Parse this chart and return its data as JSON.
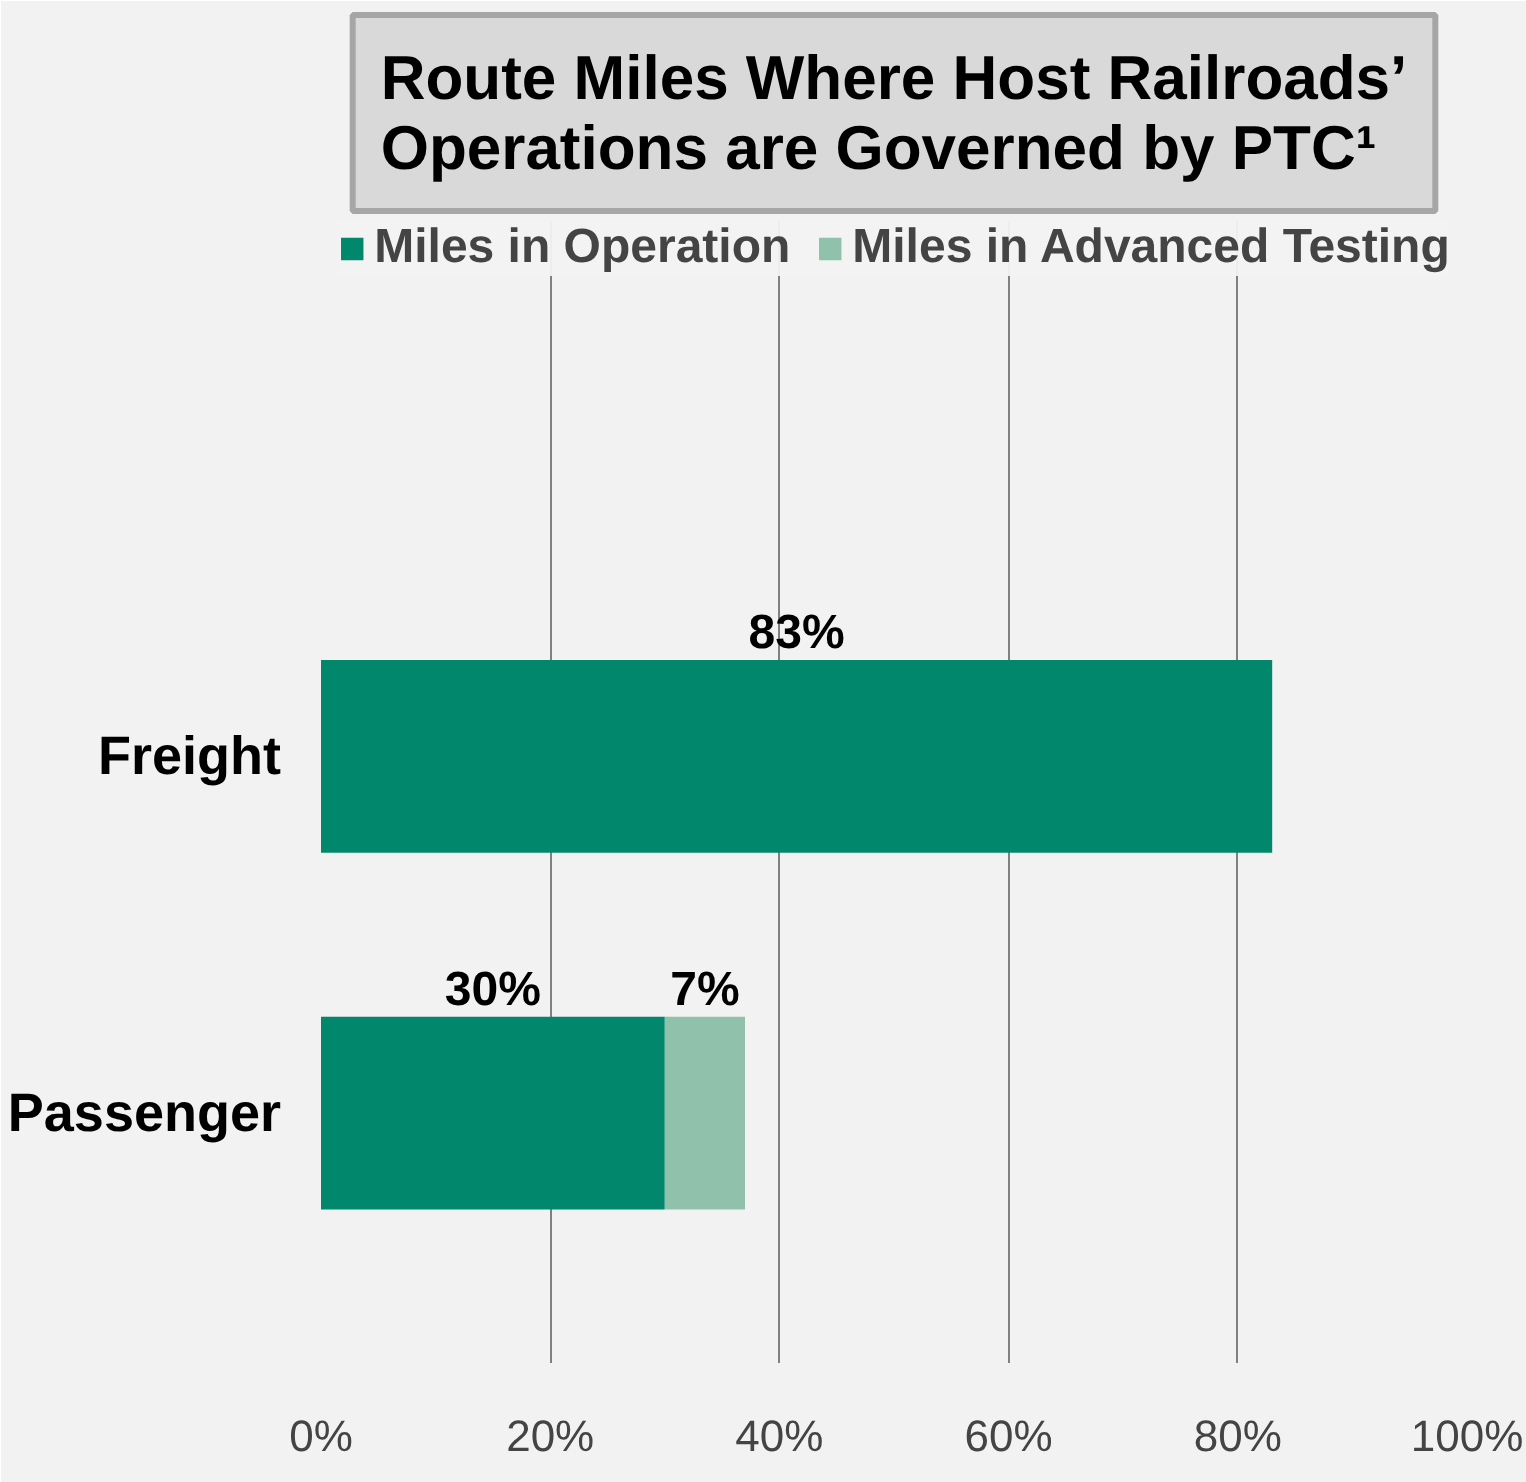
{
  "chart_data": {
    "type": "bar",
    "orientation": "horizontal",
    "stacked": true,
    "title": "Route Miles Where Host Railroads’\nOperations are Governed by PTC¹",
    "categories": [
      "Freight",
      "Passenger"
    ],
    "series": [
      {
        "name": "Miles in Operation",
        "color": "#00876c",
        "values": [
          83,
          30
        ],
        "value_labels": [
          "83%",
          "30%"
        ]
      },
      {
        "name": "Miles in Advanced Testing",
        "color": "#8fc1ab",
        "values": [
          null,
          7
        ],
        "value_labels": [
          null,
          "7%"
        ]
      }
    ],
    "xlim": [
      0,
      100
    ],
    "xticks": [
      {
        "value": 0,
        "label": "0%"
      },
      {
        "value": 20,
        "label": "20%"
      },
      {
        "value": 40,
        "label": "40%"
      },
      {
        "value": 60,
        "label": "60%"
      },
      {
        "value": 80,
        "label": "80%"
      },
      {
        "value": 100,
        "label": "100%"
      }
    ],
    "grid": "x",
    "legend": "top"
  }
}
